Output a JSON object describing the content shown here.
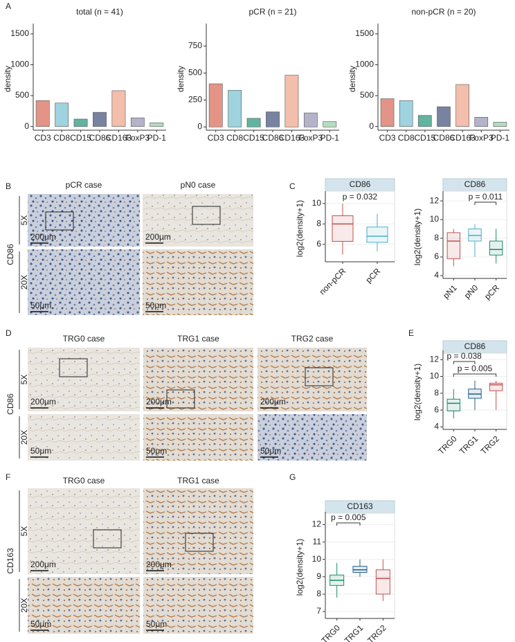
{
  "figure": {
    "panel_labels": [
      "A",
      "B",
      "C",
      "D",
      "E",
      "F",
      "G"
    ],
    "B": {
      "columns": [
        "pCR case",
        "pN0 case"
      ],
      "marker": "CD86",
      "rows": [
        "5X",
        "20X"
      ],
      "scale_bars": [
        "200μm",
        "50μm"
      ]
    },
    "D": {
      "columns": [
        "TRG0 case",
        "TRG1 case",
        "TRG2 case"
      ],
      "marker": "CD86",
      "rows": [
        "5X",
        "20X"
      ],
      "scale_bars": [
        "200μm",
        "50μm"
      ]
    },
    "F": {
      "columns": [
        "TRG0 case",
        "TRG1 case"
      ],
      "marker": "CD163",
      "rows": [
        "5X",
        "20X"
      ],
      "scale_bars": [
        "200μm",
        "50μm"
      ]
    }
  },
  "chart_data": [
    {
      "type": "bar",
      "title": "total (n = 41)",
      "ylabel": "density",
      "categories": [
        "CD3",
        "CD8",
        "CD15",
        "CD86",
        "CD163",
        "FoxP3",
        "PD-1"
      ],
      "values": [
        420,
        380,
        120,
        230,
        580,
        140,
        60
      ],
      "colors": [
        "#d9705f",
        "#7ec4d4",
        "#2e9a7f",
        "#4a5a80",
        "#f0a890",
        "#9a9ab8",
        "#9cd0a8"
      ],
      "ylim": [
        -60,
        1600
      ],
      "yticks": [
        0,
        500,
        1000,
        1500
      ]
    },
    {
      "type": "bar",
      "title": "pCR (n = 21)",
      "ylabel": "density",
      "categories": [
        "CD3",
        "CD8",
        "CD15",
        "CD86",
        "CD163",
        "FoxP3",
        "PD-1"
      ],
      "values": [
        400,
        340,
        80,
        140,
        480,
        130,
        50
      ],
      "colors": [
        "#d9705f",
        "#7ec4d4",
        "#2e9a7f",
        "#4a5a80",
        "#f0a890",
        "#9a9ab8",
        "#9cd0a8"
      ],
      "ylim": [
        -30,
        920
      ],
      "yticks": [
        0,
        250,
        500,
        750
      ]
    },
    {
      "type": "bar",
      "title": "non-pCR (n = 20)",
      "ylabel": "density",
      "categories": [
        "CD3",
        "CD8",
        "CD15",
        "CD86",
        "CD163",
        "FoxP3",
        "PD-1"
      ],
      "values": [
        450,
        420,
        180,
        320,
        680,
        150,
        70
      ],
      "colors": [
        "#d9705f",
        "#7ec4d4",
        "#2e9a7f",
        "#4a5a80",
        "#f0a890",
        "#9a9ab8",
        "#9cd0a8"
      ],
      "ylim": [
        -60,
        1600
      ],
      "yticks": [
        0,
        500,
        1000,
        1500
      ]
    },
    {
      "type": "box",
      "title": "CD86",
      "ylabel": "log2(density+1)",
      "categories": [
        "non-pCR",
        "pCR"
      ],
      "colors": [
        "#c0504d",
        "#4bacc6"
      ],
      "whisker_low": [
        5.0,
        5.3
      ],
      "q1": [
        6.3,
        6.2
      ],
      "median": [
        8.0,
        6.8
      ],
      "q3": [
        8.8,
        7.7
      ],
      "whisker_high": [
        10.0,
        9.0
      ],
      "ylim": [
        4.3,
        10.8
      ],
      "yticks": [
        6,
        8,
        10
      ],
      "annotations": [
        "p = 0.032"
      ]
    },
    {
      "type": "box",
      "title": "CD86",
      "ylabel": "log2(density+1)",
      "categories": [
        "pN1",
        "pN0",
        "pCR"
      ],
      "colors": [
        "#c0504d",
        "#4bacc6",
        "#1a8a6a"
      ],
      "whisker_low": [
        5.0,
        6.0,
        5.3
      ],
      "q1": [
        5.8,
        7.7,
        6.2
      ],
      "median": [
        7.7,
        8.3,
        6.8
      ],
      "q3": [
        8.6,
        9.0,
        7.7
      ],
      "whisker_high": [
        9.0,
        9.5,
        9.0
      ],
      "ylim": [
        3.7,
        12.6
      ],
      "yticks": [
        4,
        6,
        8,
        10,
        12
      ],
      "annotations": [
        "p = 0.011"
      ]
    },
    {
      "type": "box",
      "title": "CD86",
      "ylabel": "log2(density+1)",
      "categories": [
        "TRG0",
        "TRG1",
        "TRG2"
      ],
      "colors": [
        "#1a8a6a",
        "#1e5f8a",
        "#c0504d"
      ],
      "whisker_low": [
        5.0,
        6.0,
        6.0
      ],
      "q1": [
        5.9,
        7.4,
        8.3
      ],
      "median": [
        6.8,
        7.9,
        9.0
      ],
      "q3": [
        7.3,
        8.5,
        9.2
      ],
      "whisker_high": [
        8.5,
        9.5,
        9.5
      ],
      "ylim": [
        3.7,
        12.6
      ],
      "yticks": [
        4,
        6,
        8,
        10,
        12
      ],
      "annotations": [
        "p = 0.038",
        "p = 0.005"
      ]
    },
    {
      "type": "box",
      "title": "CD163",
      "ylabel": "log2(density+1)",
      "categories": [
        "TRG0",
        "TRG1",
        "TRG2"
      ],
      "colors": [
        "#1a8a6a",
        "#1e5f8a",
        "#c0504d"
      ],
      "whisker_low": [
        7.8,
        9.0,
        7.6
      ],
      "q1": [
        8.5,
        9.25,
        8.0
      ],
      "median": [
        8.8,
        9.4,
        8.9
      ],
      "q3": [
        9.1,
        9.6,
        9.4
      ],
      "whisker_high": [
        9.8,
        10.0,
        10.0
      ],
      "ylim": [
        6.6,
        12.5
      ],
      "yticks": [
        7,
        8,
        9,
        10,
        11,
        12
      ],
      "annotations": [
        "p = 0.005"
      ]
    }
  ]
}
